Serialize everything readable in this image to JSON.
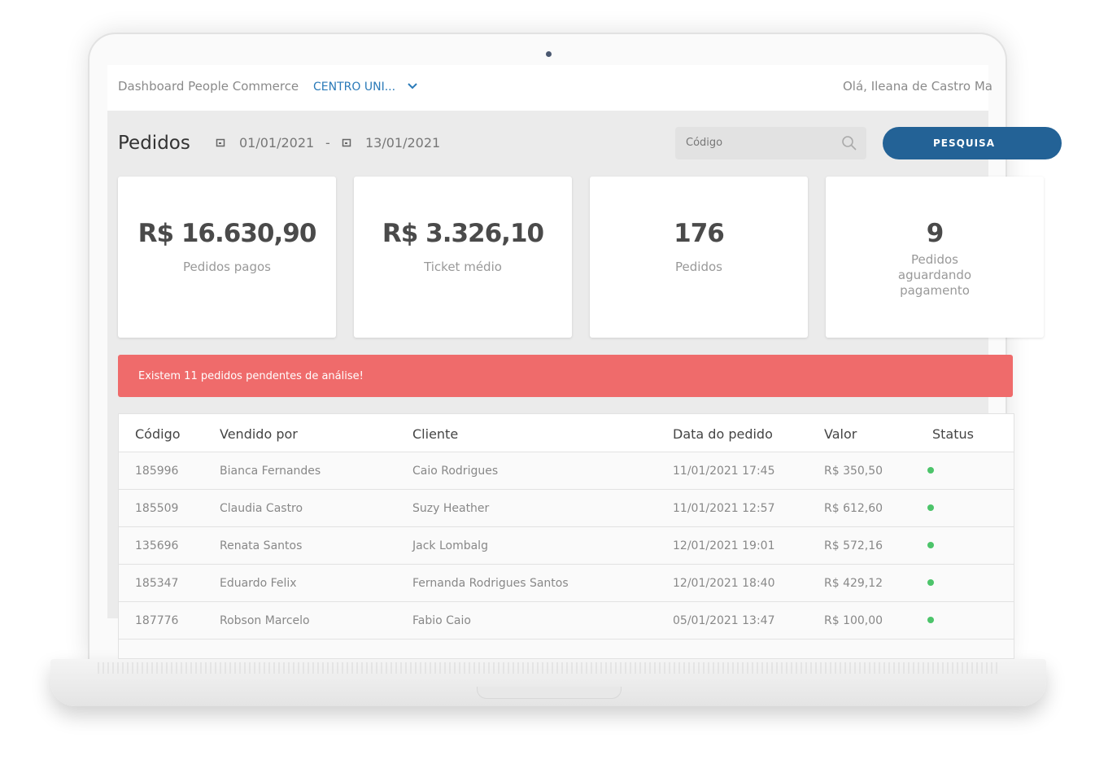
{
  "header": {
    "title": "Dashboard People Commerce",
    "dropdown": "CENTRO UNI...",
    "greeting": "Olá, Ileana de Castro Ma"
  },
  "filters": {
    "title": "Pedidos",
    "date_from": "01/01/2021",
    "separator": "-",
    "date_to": "13/01/2021",
    "search_placeholder": "Código",
    "button": "PESQUISA"
  },
  "cards": [
    {
      "value": "R$ 16.630,90",
      "label": "Pedidos pagos"
    },
    {
      "value": "R$ 3.326,10",
      "label": "Ticket médio"
    },
    {
      "value": "176",
      "label": "Pedidos"
    },
    {
      "value": "9",
      "label": "Pedidos aguardando pagamento"
    }
  ],
  "alert": "Existem 11 pedidos pendentes de análise!",
  "table": {
    "columns": [
      "Código",
      "Vendido por",
      "Cliente",
      "Data do pedido",
      "Valor",
      "Status"
    ],
    "rows": [
      [
        "185996",
        "Bianca Fernandes",
        "Caio Rodrigues",
        "11/01/2021 17:45",
        "R$ 350,50"
      ],
      [
        "185509",
        "Claudia Castro",
        "Suzy Heather",
        "11/01/2021 12:57",
        "R$ 612,60"
      ],
      [
        "135696",
        "Renata Santos",
        "Jack Lombalg",
        "12/01/2021 19:01",
        "R$ 572,16"
      ],
      [
        "185347",
        "Eduardo Felix",
        "Fernanda Rodrigues Santos",
        "12/01/2021 18:40",
        "R$ 429,12"
      ],
      [
        "187776",
        "Robson Marcelo",
        "Fabio Caio",
        "05/01/2021 13:47",
        "R$ 100,00"
      ]
    ]
  }
}
